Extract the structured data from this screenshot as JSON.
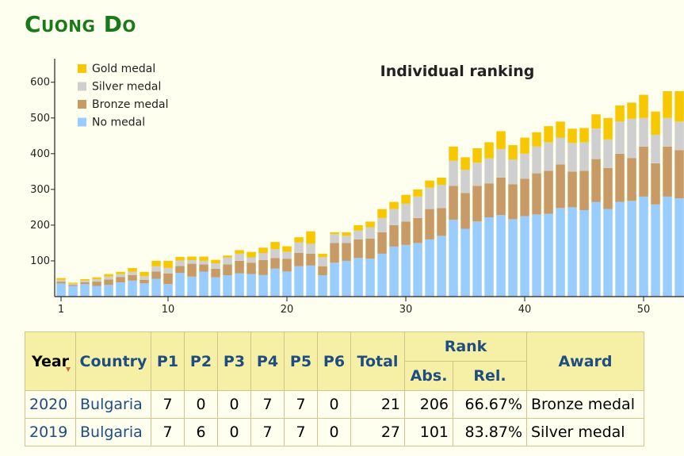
{
  "page": {
    "title": "Cuong Do"
  },
  "colors": {
    "gold": "#f7c800",
    "silver": "#cfcfcf",
    "bronze": "#c89a66",
    "none": "#99ccff",
    "title_green": "#1a7a1a",
    "header_bg": "#f6f0a6",
    "link": "#1f4d80"
  },
  "chart_data": {
    "type": "bar",
    "stacked": true,
    "title": "Individual ranking",
    "legend_position": "top-left",
    "grid": false,
    "x_ticks": [
      1,
      10,
      20,
      30,
      40,
      50
    ],
    "y_ticks": [
      100,
      200,
      300,
      400,
      500,
      600
    ],
    "ylim": [
      0,
      650
    ],
    "xlim": [
      1,
      54
    ],
    "x": [
      1,
      2,
      3,
      4,
      5,
      6,
      7,
      8,
      9,
      10,
      11,
      12,
      13,
      14,
      15,
      16,
      17,
      18,
      19,
      20,
      21,
      22,
      23,
      24,
      25,
      26,
      27,
      28,
      29,
      30,
      31,
      32,
      33,
      34,
      35,
      36,
      37,
      38,
      39,
      40,
      41,
      42,
      43,
      44,
      45,
      46,
      47,
      48,
      49,
      50,
      51,
      52,
      53,
      54
    ],
    "series": [
      {
        "name": "No medal",
        "color_key": "none",
        "values": [
          37,
          30,
          35,
          30,
          33,
          40,
          45,
          37,
          50,
          35,
          66,
          56,
          70,
          54,
          60,
          65,
          63,
          60,
          78,
          70,
          85,
          87,
          60,
          95,
          100,
          108,
          106,
          120,
          140,
          145,
          150,
          160,
          170,
          215,
          190,
          210,
          222,
          228,
          216,
          225,
          230,
          232,
          248,
          250,
          242,
          265,
          245,
          265,
          268,
          280,
          258,
          280,
          275,
          285
        ]
      },
      {
        "name": "Bronze medal",
        "color_key": "bronze",
        "values": [
          5,
          3,
          5,
          12,
          15,
          15,
          15,
          10,
          20,
          30,
          20,
          36,
          20,
          24,
          30,
          35,
          32,
          42,
          30,
          36,
          37,
          33,
          25,
          55,
          50,
          52,
          56,
          60,
          60,
          65,
          70,
          85,
          78,
          95,
          100,
          100,
          95,
          105,
          98,
          105,
          115,
          120,
          122,
          100,
          110,
          120,
          115,
          135,
          120,
          140,
          115,
          140,
          135,
          130
        ]
      },
      {
        "name": "Silver medal",
        "color_key": "silver",
        "values": [
          5,
          3,
          5,
          7,
          8,
          8,
          10,
          10,
          15,
          15,
          15,
          10,
          10,
          15,
          20,
          20,
          15,
          20,
          25,
          20,
          30,
          28,
          25,
          25,
          20,
          25,
          32,
          40,
          45,
          50,
          60,
          60,
          65,
          70,
          65,
          65,
          70,
          80,
          70,
          70,
          75,
          80,
          75,
          80,
          80,
          85,
          80,
          90,
          110,
          80,
          80,
          80,
          80,
          80
        ]
      },
      {
        "name": "Gold medal",
        "color_key": "gold",
        "values": [
          5,
          3,
          4,
          5,
          7,
          6,
          10,
          12,
          15,
          20,
          10,
          10,
          12,
          10,
          5,
          10,
          15,
          15,
          20,
          15,
          14,
          35,
          10,
          5,
          10,
          15,
          16,
          25,
          20,
          25,
          20,
          20,
          20,
          40,
          35,
          40,
          45,
          50,
          40,
          45,
          40,
          45,
          45,
          40,
          40,
          40,
          60,
          45,
          45,
          65,
          65,
          75,
          85,
          60
        ]
      }
    ]
  },
  "table": {
    "headers": {
      "year": "Year",
      "country": "Country",
      "p1": "P1",
      "p2": "P2",
      "p3": "P3",
      "p4": "P4",
      "p5": "P5",
      "p6": "P6",
      "total": "Total",
      "rank": "Rank",
      "abs": "Abs.",
      "rel": "Rel.",
      "award": "Award"
    },
    "rows": [
      {
        "year": "2020",
        "country": "Bulgaria",
        "p1": "7",
        "p2": "0",
        "p3": "0",
        "p4": "7",
        "p5": "7",
        "p6": "0",
        "total": "21",
        "abs": "206",
        "rel": "66.67%",
        "award": "Bronze medal"
      },
      {
        "year": "2019",
        "country": "Bulgaria",
        "p1": "7",
        "p2": "6",
        "p3": "0",
        "p4": "7",
        "p5": "7",
        "p6": "0",
        "total": "27",
        "abs": "101",
        "rel": "83.87%",
        "award": "Silver medal"
      }
    ]
  }
}
